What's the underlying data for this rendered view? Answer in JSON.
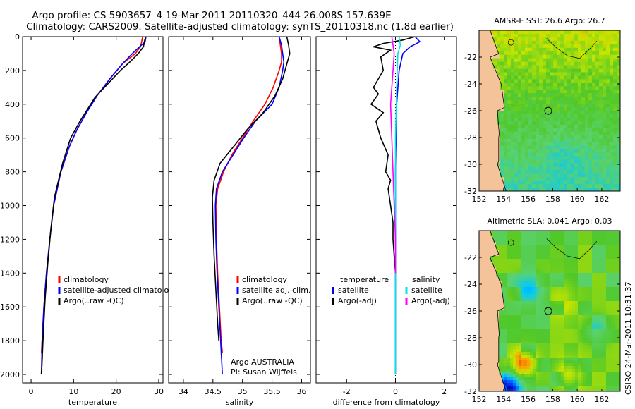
{
  "figure": {
    "title_line1": "Argo profile: CS 5903657_4 19-Mar-2011 20110320_444 26.008S 157.639E",
    "title_line2": "Climatology: CARS2009. Satellite-adjusted climatology: synTS_20110318.nc (1.8d earlier)",
    "credit_line1": "Argo AUSTRALIA",
    "credit_line2": "PI: Susan Wijffels",
    "side_label": "CSIRO 24-Mar-2011 10:31:37"
  },
  "colors": {
    "climatology": "#ff0000",
    "satellite": "#0000ff",
    "argo": "#000000",
    "sal_satellite": "#00e5e5",
    "sal_argo": "#ff00ff",
    "land": "#f4c39a"
  },
  "chart_data": [
    {
      "type": "line",
      "panel": "temperature",
      "xlabel": "temperature",
      "ylabel": "",
      "xlim": [
        -2,
        31
      ],
      "ylim": [
        2050,
        0
      ],
      "xticks": [
        0,
        10,
        20,
        30
      ],
      "xtick_labels": [
        "0",
        "10",
        "20",
        "30"
      ],
      "yticks": [
        0,
        200,
        400,
        600,
        800,
        1000,
        1200,
        1400,
        1600,
        1800,
        2000
      ],
      "ytick_labels": [
        "0",
        "200",
        "400",
        "600",
        "800",
        "1000",
        "1200",
        "1400",
        "1600",
        "1800",
        "2000"
      ],
      "y_reversed": true,
      "legend": [
        "climatology",
        "satellite-adjusted climatology",
        "Argo(..raw -QC)"
      ],
      "legend_position": "lower-right",
      "series": [
        {
          "name": "climatology",
          "color": "#ff0000",
          "x": [
            26.2,
            26.0,
            25.7,
            24.5,
            21.5,
            18.5,
            15.5,
            13.0,
            10.8,
            9.0,
            7.0,
            5.3,
            4.4,
            3.6,
            3.0,
            2.6,
            2.45
          ],
          "y": [
            0,
            30,
            60,
            100,
            160,
            250,
            350,
            450,
            550,
            650,
            800,
            1000,
            1200,
            1400,
            1600,
            1800,
            1870
          ]
        },
        {
          "name": "satellite-adjusted climatology",
          "color": "#0000ff",
          "x": [
            27.0,
            26.8,
            25.5,
            23.8,
            21.5,
            18.5,
            15.5,
            13.0,
            10.8,
            9.0,
            7.0,
            5.3,
            4.4,
            3.6,
            3.0,
            2.6,
            2.45
          ],
          "y": [
            0,
            30,
            60,
            100,
            160,
            250,
            350,
            450,
            550,
            650,
            800,
            1000,
            1200,
            1400,
            1600,
            1800,
            2000
          ]
        },
        {
          "name": "Argo(..raw -QC)",
          "color": "#000000",
          "x": [
            27.0,
            26.7,
            26.4,
            25.2,
            23.2,
            21.0,
            18.0,
            15.0,
            13.5,
            11.5,
            9.3,
            7.4,
            5.5,
            4.6,
            3.9,
            3.3,
            2.9,
            2.55,
            2.4
          ],
          "y": [
            0,
            20,
            60,
            100,
            150,
            200,
            280,
            360,
            420,
            500,
            600,
            750,
            950,
            1150,
            1350,
            1550,
            1750,
            1950,
            2000
          ]
        }
      ]
    },
    {
      "type": "line",
      "panel": "salinity",
      "xlabel": "salinity",
      "ylabel": "",
      "xlim": [
        33.75,
        36.15
      ],
      "ylim": [
        2050,
        0
      ],
      "xticks": [
        34,
        34.5,
        35,
        35.5,
        36
      ],
      "xtick_labels": [
        "34",
        "34.5",
        "35",
        "35.5",
        "36"
      ],
      "y_reversed": true,
      "legend": [
        "climatology",
        "satellite adj. clim.",
        "Argo(..raw -QC)"
      ],
      "legend_position": "lower-right",
      "series": [
        {
          "name": "climatology",
          "color": "#ff0000",
          "x": [
            35.62,
            35.64,
            35.66,
            35.66,
            35.62,
            35.52,
            35.38,
            35.18,
            35.0,
            34.82,
            34.68,
            34.58,
            34.55,
            34.56,
            34.58,
            34.61,
            34.64,
            34.66
          ],
          "y": [
            0,
            50,
            100,
            150,
            200,
            300,
            400,
            500,
            600,
            700,
            800,
            900,
            1000,
            1200,
            1400,
            1600,
            1800,
            1870
          ]
        },
        {
          "name": "satellite adj. clim.",
          "color": "#0000ff",
          "x": [
            35.62,
            35.66,
            35.68,
            35.7,
            35.68,
            35.62,
            35.5,
            35.22,
            35.02,
            34.84,
            34.66,
            34.56,
            34.54,
            34.55,
            34.57,
            34.6,
            34.63,
            34.66
          ],
          "y": [
            0,
            50,
            100,
            150,
            200,
            300,
            400,
            500,
            600,
            700,
            800,
            900,
            1000,
            1200,
            1400,
            1600,
            1800,
            2000
          ]
        },
        {
          "name": "Argo(..raw -QC)",
          "color": "#000000",
          "x": [
            35.75,
            35.78,
            35.8,
            35.76,
            35.68,
            35.55,
            35.35,
            35.08,
            34.85,
            34.62,
            34.52,
            34.49,
            34.5,
            34.52,
            34.55,
            34.58,
            34.6
          ],
          "y": [
            0,
            50,
            100,
            150,
            250,
            350,
            450,
            550,
            650,
            750,
            850,
            950,
            1100,
            1300,
            1500,
            1700,
            1800
          ]
        }
      ]
    },
    {
      "type": "line",
      "panel": "difference",
      "xlabel": "difference from climatology",
      "ylabel": "",
      "xlim": [
        -3.25,
        2.5
      ],
      "ylim": [
        2050,
        0
      ],
      "xticks": [
        -2,
        0,
        2
      ],
      "xtick_labels": [
        "-2",
        "0",
        "2"
      ],
      "y_reversed": true,
      "zero_line": true,
      "legend_groups": [
        {
          "heading": "temperature",
          "items": [
            "satellite",
            "Argo(-adj)"
          ]
        },
        {
          "heading": "salinity",
          "items": [
            "satellite",
            "Argo(-adj)"
          ]
        }
      ],
      "legend_position": "lower-center",
      "series": [
        {
          "name": "temperature satellite",
          "color": "#0000ff",
          "x": [
            0.8,
            1.0,
            0.6,
            0.3,
            0.15,
            0.05,
            0.0,
            0.0,
            0.0
          ],
          "y": [
            0,
            30,
            60,
            100,
            200,
            400,
            800,
            1200,
            2000
          ]
        },
        {
          "name": "temperature Argo(-adj)",
          "color": "#000000",
          "x": [
            0.8,
            0.3,
            -0.5,
            -0.9,
            -0.2,
            -0.6,
            -0.5,
            -0.9,
            -0.7,
            -1.0,
            -0.5,
            -0.8,
            -0.6,
            -0.3,
            -0.4,
            -0.2,
            -0.3,
            -0.2,
            -0.1,
            -0.1,
            -0.05,
            0.0
          ],
          "y": [
            0,
            20,
            40,
            60,
            80,
            120,
            200,
            300,
            340,
            400,
            450,
            500,
            600,
            700,
            800,
            850,
            900,
            1000,
            1100,
            1200,
            1300,
            1400
          ]
        },
        {
          "name": "salinity satellite",
          "color": "#00e5e5",
          "x": [
            0.15,
            0.2,
            0.1,
            0.05,
            0.0,
            0.0,
            0.0,
            0.0
          ],
          "y": [
            0,
            50,
            100,
            300,
            600,
            1000,
            1500,
            2000
          ]
        },
        {
          "name": "salinity Argo(-adj)",
          "color": "#ff00ff",
          "x": [
            -0.15,
            -0.1,
            -0.05,
            -0.1,
            -0.2,
            -0.15,
            -0.1,
            -0.05,
            0.0,
            0.0
          ],
          "y": [
            0,
            50,
            100,
            200,
            400,
            600,
            800,
            1000,
            1200,
            1400
          ]
        }
      ]
    },
    {
      "type": "heatmap",
      "panel": "sst-map",
      "title": "AMSR-E SST: 26.6 Argo: 26.7",
      "xlim": [
        152,
        163.5
      ],
      "ylim": [
        -32,
        -20
      ],
      "xticks": [
        152,
        154,
        156,
        158,
        160,
        162
      ],
      "xtick_labels": [
        "152",
        "154",
        "156",
        "158",
        "160",
        "162"
      ],
      "yticks": [
        -22,
        -24,
        -26,
        -28,
        -30,
        -32
      ],
      "ytick_labels": [
        "-22",
        "-24",
        "-26",
        "-28",
        "-30",
        "-32"
      ],
      "float_position": [
        157.639,
        -26.008
      ]
    },
    {
      "type": "heatmap",
      "panel": "sla-map",
      "title": "Altimetric SLA: 0.041 Argo: 0.03",
      "xlim": [
        152,
        163.5
      ],
      "ylim": [
        -32,
        -20
      ],
      "xticks": [
        152,
        154,
        156,
        158,
        160,
        162
      ],
      "xtick_labels": [
        "152",
        "154",
        "156",
        "158",
        "160",
        "162"
      ],
      "yticks": [
        -22,
        -24,
        -26,
        -28,
        -30,
        -32
      ],
      "ytick_labels": [
        "-22",
        "-24",
        "-26",
        "-28",
        "-30",
        "-32"
      ],
      "float_position": [
        157.639,
        -26.008
      ]
    }
  ]
}
